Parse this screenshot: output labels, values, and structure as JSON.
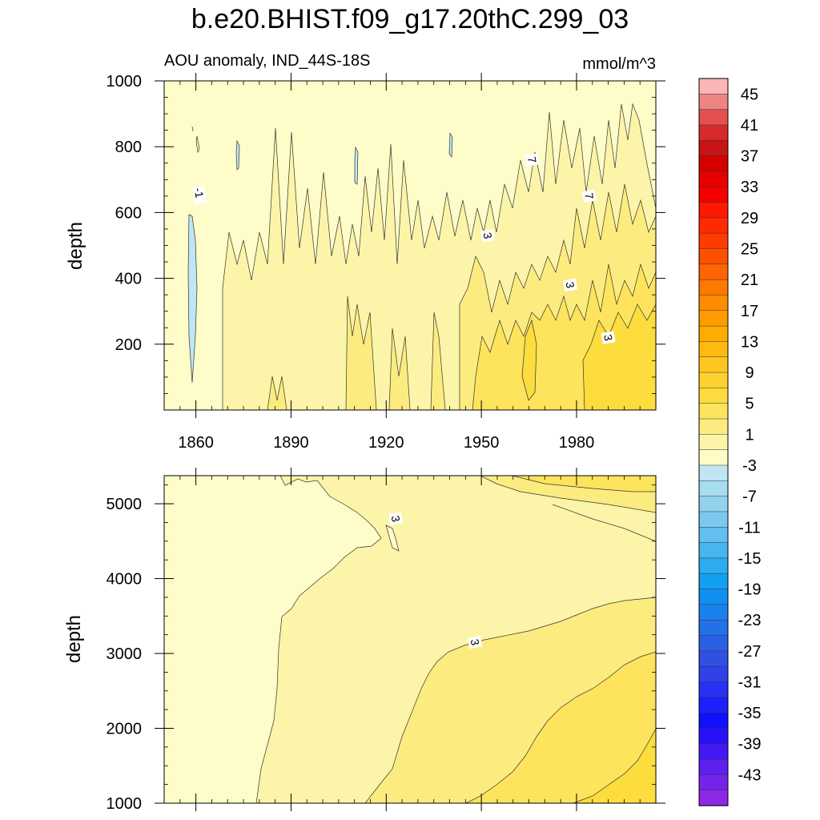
{
  "title": "b.e20.BHIST.f09_g17.20thC.299_03",
  "colors": {
    "background": "#ffffff",
    "frame": "#000000",
    "contour_line": "#333333",
    "label_box": "#ffffff",
    "ramp_top": "#fab6b6",
    "ramp_bottom": "#8c28e6"
  },
  "chart_data": [
    {
      "type": "heatmap",
      "subtitle_left": "AOU anomaly, IND_44S-18S",
      "subtitle_right": "mmol/m^3",
      "xlabel": "",
      "ylabel": "depth",
      "xlim": [
        1850,
        2005
      ],
      "ylim": [
        1000,
        0
      ],
      "x_ticks": [
        1860,
        1890,
        1920,
        1950,
        1980
      ],
      "x_tick_labels": [
        "1860",
        "1890",
        "1920",
        "1950",
        "1980"
      ],
      "y_ticks": [
        200,
        400,
        600,
        800,
        1000
      ],
      "y_tick_labels": [
        "200",
        "400",
        "600",
        "800",
        "1000"
      ],
      "grid": false,
      "contour_labels": [
        {
          "text": "-1",
          "x": 1861,
          "y": 660
        },
        {
          "text": "3",
          "x": 1990,
          "y": 220
        },
        {
          "text": "3",
          "x": 1978,
          "y": 380
        },
        {
          "text": "3",
          "x": 1952,
          "y": 530
        },
        {
          "text": "7",
          "x": 1984,
          "y": 650
        },
        {
          "text": "7",
          "x": 1966,
          "y": 760
        }
      ]
    },
    {
      "type": "heatmap",
      "xlabel": "",
      "ylabel": "depth",
      "xlim": [
        1850,
        2005
      ],
      "ylim": [
        5375,
        1000
      ],
      "x_ticks": [
        1860,
        1890,
        1920,
        1950,
        1980
      ],
      "y_ticks": [
        1000,
        2000,
        3000,
        4000,
        5000
      ],
      "y_tick_labels": [
        "1000",
        "2000",
        "3000",
        "4000",
        "5000"
      ],
      "grid": false,
      "contour_labels": [
        {
          "text": "3",
          "x": 1948,
          "y": 3150
        },
        {
          "text": "3",
          "x": 1923,
          "y": 4800
        }
      ]
    }
  ],
  "colorbar": {
    "labels": [
      "45",
      "41",
      "37",
      "33",
      "29",
      "25",
      "21",
      "17",
      "13",
      "9",
      "5",
      "1",
      "-3",
      "-7",
      "-11",
      "-15",
      "-19",
      "-23",
      "-27",
      "-31",
      "-35",
      "-39",
      "-43"
    ],
    "colors": [
      "#fab6b6",
      "#ee8585",
      "#e45050",
      "#d72a2a",
      "#c81414",
      "#d60000",
      "#e60000",
      "#f40000",
      "#ff1800",
      "#ff2a00",
      "#ff3c00",
      "#ff5000",
      "#ff6400",
      "#ff7800",
      "#ff8c00",
      "#ff9c00",
      "#ffac00",
      "#ffba10",
      "#ffc61e",
      "#fed22e",
      "#fddc3e",
      "#fde45c",
      "#fcec80",
      "#fcf4a8",
      "#fefcc8",
      "#bfe6f2",
      "#a8dcf0",
      "#92d2ef",
      "#7ac8ee",
      "#62bff0",
      "#48b5f0",
      "#2cabf0",
      "#14a0f0",
      "#1090f0",
      "#1a82ec",
      "#2470e8",
      "#2c60e4",
      "#3050e2",
      "#3040ea",
      "#2830f4",
      "#1c20fa",
      "#1010ff",
      "#2810fa",
      "#4418f4",
      "#5e20ee",
      "#7424ea",
      "#8c28e6"
    ]
  }
}
